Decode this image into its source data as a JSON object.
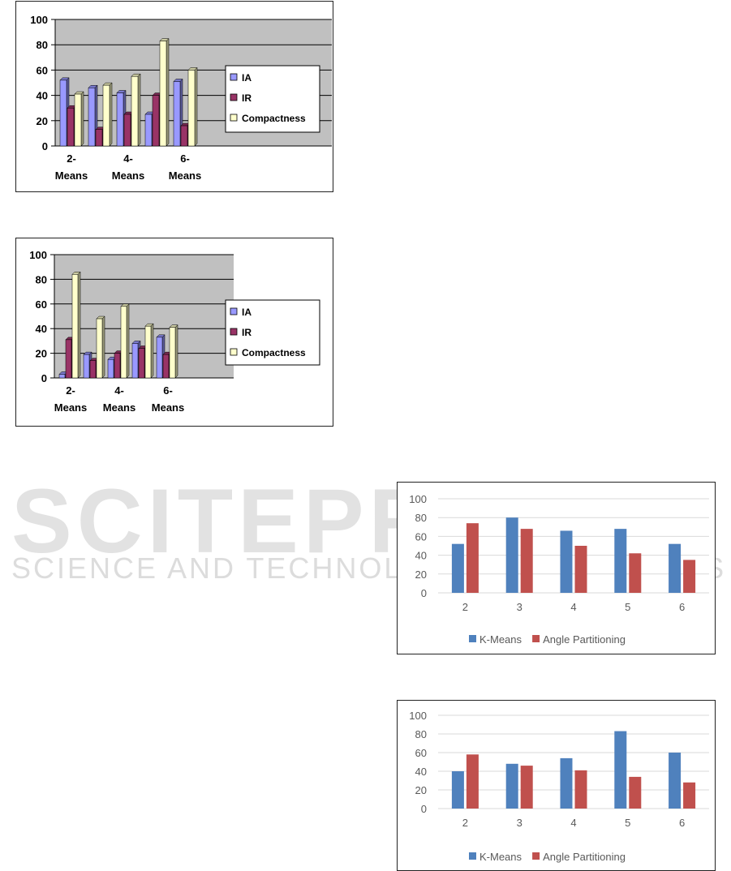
{
  "watermark": {
    "big": "SCITEPRESS",
    "small": "SCIENCE AND TECHNOLOGY PUBLICATIONS"
  },
  "chart_data": [
    {
      "type": "bar",
      "categories": [
        "2-\nMeans",
        "",
        "4-\nMeans",
        "",
        "6-\nMeans"
      ],
      "series": [
        {
          "name": "IA",
          "values": [
            52,
            46,
            42,
            25,
            51
          ],
          "color": "#9999ff"
        },
        {
          "name": "IR",
          "values": [
            30,
            13,
            25,
            40,
            16
          ],
          "color": "#993366"
        },
        {
          "name": "Compactness",
          "values": [
            41,
            48,
            55,
            83,
            60
          ],
          "color": "#ffffcc"
        }
      ],
      "ylim": [
        0,
        100
      ],
      "yticks": [
        0,
        20,
        40,
        60,
        80,
        100
      ],
      "grid": true,
      "legend": "right",
      "style": "classic-3d"
    },
    {
      "type": "bar",
      "categories": [
        "2-\nMeans",
        "",
        "4-\nMeans",
        "",
        "6-\nMeans"
      ],
      "series": [
        {
          "name": "IA",
          "values": [
            3,
            19,
            15,
            28,
            33
          ],
          "color": "#9999ff"
        },
        {
          "name": "IR",
          "values": [
            31,
            14,
            20,
            24,
            19
          ],
          "color": "#993366"
        },
        {
          "name": "Compactness",
          "values": [
            84,
            48,
            58,
            42,
            41
          ],
          "color": "#ffffcc"
        }
      ],
      "ylim": [
        0,
        100
      ],
      "yticks": [
        0,
        20,
        40,
        60,
        80,
        100
      ],
      "grid": true,
      "legend": "right",
      "style": "classic-3d"
    },
    {
      "type": "bar",
      "categories": [
        "2",
        "3",
        "4",
        "5",
        "6"
      ],
      "series": [
        {
          "name": "K-Means",
          "values": [
            52,
            80,
            66,
            68,
            52
          ],
          "color": "#4f81bd"
        },
        {
          "name": "Angle Partitioning",
          "values": [
            74,
            68,
            50,
            42,
            35
          ],
          "color": "#c0504d"
        }
      ],
      "ylim": [
        0,
        100
      ],
      "yticks": [
        0,
        20,
        40,
        60,
        80,
        100
      ],
      "grid": true,
      "legend": "bottom",
      "style": "flat"
    },
    {
      "type": "bar",
      "categories": [
        "2",
        "3",
        "4",
        "5",
        "6"
      ],
      "series": [
        {
          "name": "K-Means",
          "values": [
            40,
            48,
            54,
            83,
            60
          ],
          "color": "#4f81bd"
        },
        {
          "name": "Angle Partitioning",
          "values": [
            58,
            46,
            41,
            34,
            28
          ],
          "color": "#c0504d"
        }
      ],
      "ylim": [
        0,
        100
      ],
      "yticks": [
        0,
        20,
        40,
        60,
        80,
        100
      ],
      "grid": true,
      "legend": "bottom",
      "style": "flat"
    }
  ]
}
